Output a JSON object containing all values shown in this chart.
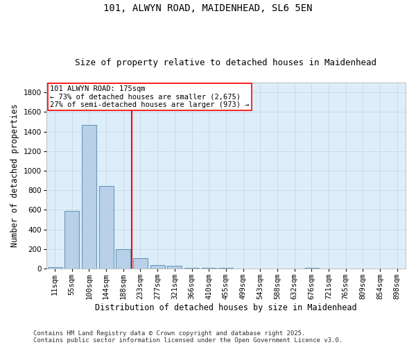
{
  "title_line1": "101, ALWYN ROAD, MAIDENHEAD, SL6 5EN",
  "title_line2": "Size of property relative to detached houses in Maidenhead",
  "xlabel": "Distribution of detached houses by size in Maidenhead",
  "ylabel": "Number of detached properties",
  "categories": [
    "11sqm",
    "55sqm",
    "100sqm",
    "144sqm",
    "188sqm",
    "233sqm",
    "277sqm",
    "321sqm",
    "366sqm",
    "410sqm",
    "455sqm",
    "499sqm",
    "543sqm",
    "588sqm",
    "632sqm",
    "676sqm",
    "721sqm",
    "765sqm",
    "809sqm",
    "854sqm",
    "898sqm"
  ],
  "values": [
    15,
    585,
    1470,
    845,
    200,
    105,
    35,
    25,
    10,
    5,
    10,
    0,
    0,
    0,
    0,
    5,
    0,
    0,
    0,
    0,
    0
  ],
  "bar_color": "#b8d0e8",
  "bar_edge_color": "#6699bb",
  "vline_x": 4.5,
  "vline_color": "red",
  "annotation_text": "101 ALWYN ROAD: 175sqm\n← 73% of detached houses are smaller (2,675)\n27% of semi-detached houses are larger (973) →",
  "annotation_box_color": "white",
  "annotation_box_edge_color": "red",
  "ylim": [
    0,
    1900
  ],
  "yticks": [
    0,
    200,
    400,
    600,
    800,
    1000,
    1200,
    1400,
    1600,
    1800
  ],
  "grid_color": "#c8dce8",
  "background_color": "#ddeef8",
  "footnote": "Contains HM Land Registry data © Crown copyright and database right 2025.\nContains public sector information licensed under the Open Government Licence v3.0.",
  "title_fontsize": 10,
  "subtitle_fontsize": 9,
  "axis_label_fontsize": 8.5,
  "tick_fontsize": 7.5,
  "annotation_fontsize": 7.5,
  "footnote_fontsize": 6.5
}
